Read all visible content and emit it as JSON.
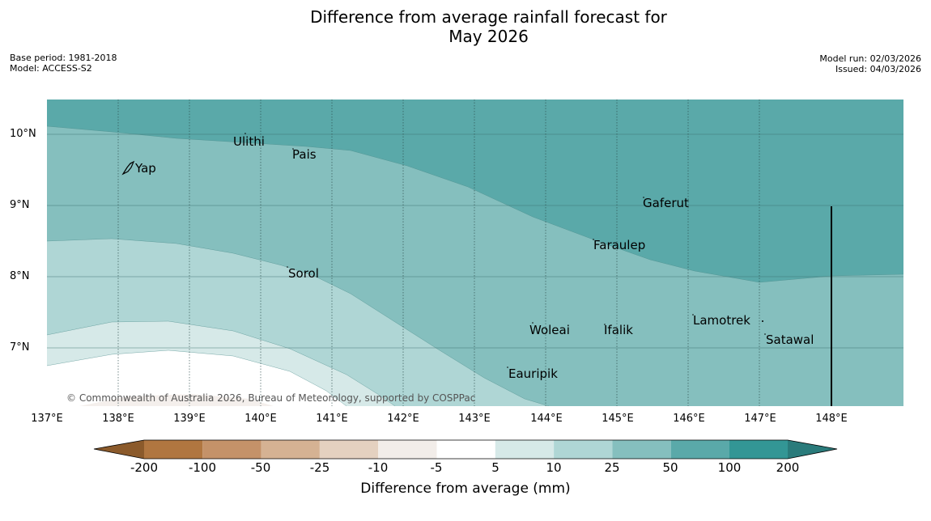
{
  "title": {
    "line1": "Difference from average rainfall forecast for",
    "line2": "May 2026"
  },
  "meta": {
    "base_period": "Base period: 1981-2018",
    "model": "Model: ACCESS-S2",
    "model_run": "Model run: 02/03/2026",
    "issued": "Issued: 04/03/2026"
  },
  "map": {
    "lat_labels": [
      "10°N",
      "9°N",
      "8°N",
      "7°N"
    ],
    "lon_labels": [
      "137°E",
      "138°E",
      "139°E",
      "140°E",
      "141°E",
      "142°E",
      "143°E",
      "144°E",
      "145°E",
      "146°E",
      "147°E",
      "148°E"
    ],
    "places": [
      "Ulithi",
      "Pais",
      "Yap",
      "Gaferut",
      "Faraulep",
      "Sorol",
      "Lamotrek",
      "Woleai",
      "Ifalik",
      "Satawal",
      "Eauripik"
    ],
    "copyright": "© Commonwealth of Australia 2026, Bureau of Meteorology, supported by COSPPac"
  },
  "colorbar": {
    "ticks": [
      "-200",
      "-100",
      "-50",
      "-25",
      "-10",
      "-5",
      "5",
      "10",
      "25",
      "50",
      "100",
      "200"
    ],
    "colors": [
      "#8b5a2b",
      "#b07640",
      "#c49269",
      "#d5b293",
      "#e4d1c0",
      "#f2ede9",
      "#ffffff",
      "#d6e9e8",
      "#afd6d5",
      "#85bfbe",
      "#5aa9a9",
      "#339695",
      "#2a7b7b"
    ],
    "label": "Difference from average (mm)"
  }
}
